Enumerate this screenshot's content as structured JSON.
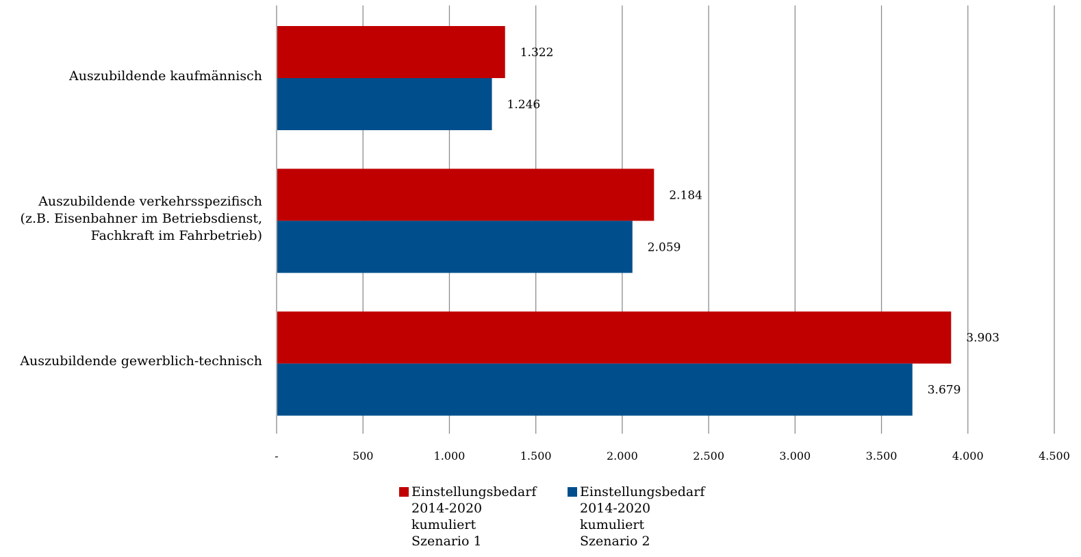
{
  "chart_data": {
    "type": "bar",
    "orientation": "horizontal",
    "categories": [
      "Auszubildende kaufmännisch",
      "Auszubildende verkehrsspezifisch\n(z.B. Eisenbahner im Betriebsdienst,\nFachkraft im Fahrbetrieb)",
      "Auszubildende gewerblich-technisch"
    ],
    "series": [
      {
        "name": "Einstellungsbedarf\n2014-2020\nkumuliert\nSzenario 1",
        "color": "#c00000",
        "values": [
          1322,
          2184,
          3903
        ],
        "labels": [
          "1.322",
          "2.184",
          "3.903"
        ]
      },
      {
        "name": "Einstellungsbedarf\n2014-2020\nkumuliert\nSzenario 2",
        "color": "#004f8c",
        "values": [
          1246,
          2059,
          3679
        ],
        "labels": [
          "1.246",
          "2.059",
          "3.679"
        ]
      }
    ],
    "xlim": [
      0,
      4500
    ],
    "xticks": [
      0,
      500,
      1000,
      1500,
      2000,
      2500,
      3000,
      3500,
      4000,
      4500
    ],
    "xtick_labels": [
      "-",
      "500",
      "1.000",
      "1.500",
      "2.000",
      "2.500",
      "3.000",
      "3.500",
      "4.000",
      "4.500"
    ],
    "grid": true,
    "legend_position": "bottom",
    "title": "",
    "xlabel": "",
    "ylabel": ""
  }
}
